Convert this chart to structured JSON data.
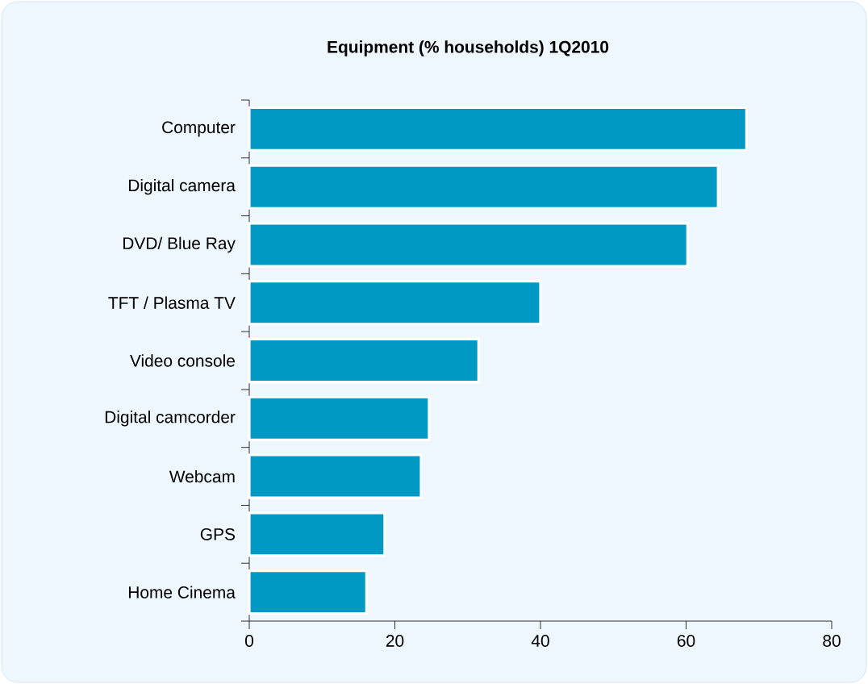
{
  "chart_data": {
    "type": "bar",
    "orientation": "horizontal",
    "title": "Equipment (% households) 1Q2010",
    "categories": [
      "Computer",
      "Digital camera",
      "DVD/ Blue Ray",
      "TFT / Plasma TV",
      "Video console",
      "Digital camcorder",
      "Webcam",
      "GPS",
      "Home Cinema"
    ],
    "values": [
      68.3,
      64.4,
      60.2,
      40.0,
      31.5,
      24.7,
      23.6,
      18.6,
      16.1
    ],
    "color": "#0099c4",
    "xlim": [
      0,
      80
    ],
    "xticks": [
      0,
      20,
      40,
      60,
      80
    ],
    "grid": false
  }
}
